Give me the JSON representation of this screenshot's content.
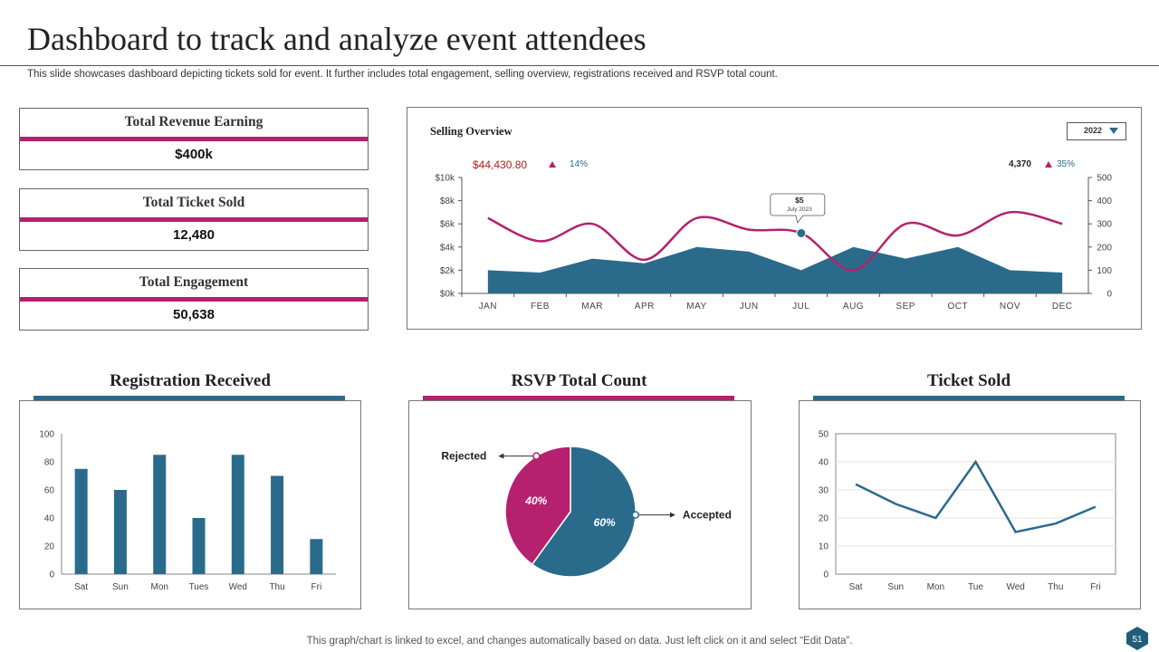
{
  "title": "Dashboard to track and analyze event attendees",
  "subtitle": "This slide showcases dashboard depicting tickets sold for event. It further includes total engagement, selling overview, registrations received and RSVP total count.",
  "kpis": [
    {
      "label": "Total Revenue Earning",
      "value": "$400k"
    },
    {
      "label": "Total Ticket Sold",
      "value": "12,480"
    },
    {
      "label": "Total Engagement",
      "value": "50,638"
    }
  ],
  "sections": {
    "registration": "Registration Received",
    "rsvp": "RSVP Total Count",
    "ticket": "Ticket Sold"
  },
  "selling": {
    "title": "Selling Overview",
    "year": "2022",
    "revenue_stat": "$44,430.80",
    "revenue_change": "14%",
    "tickets_stat": "4,370",
    "tickets_change": "35%",
    "tooltip_value": "$5",
    "tooltip_label": "July 2023"
  },
  "footer": "This graph/chart is linked to excel,  and changes automatically based on data. Just left click on it and select “Edit Data”.",
  "page_number": "51",
  "colors": {
    "teal": "#2a6b8c",
    "magenta": "#b5216f"
  },
  "chart_data": [
    {
      "id": "selling",
      "type": "area",
      "title": "Selling Overview",
      "categories": [
        "JAN",
        "FEB",
        "MAR",
        "APR",
        "MAY",
        "JUN",
        "JUL",
        "AUG",
        "SEP",
        "OCT",
        "NOV",
        "DEC"
      ],
      "series": [
        {
          "name": "Revenue",
          "axis": "left",
          "style": "area",
          "values": [
            2,
            1.8,
            3,
            2.6,
            4,
            3.6,
            2,
            4,
            3,
            4,
            2,
            1.8
          ]
        },
        {
          "name": "Tickets",
          "axis": "right",
          "style": "line",
          "values": [
            325,
            225,
            300,
            145,
            325,
            275,
            260,
            100,
            300,
            250,
            350,
            300
          ]
        }
      ],
      "yticks_left": [
        "$0k",
        "$2k",
        "$4k",
        "$6k",
        "$8k",
        "$10k"
      ],
      "ylim_left": [
        0,
        10
      ],
      "yticks_right": [
        "0",
        "100",
        "200",
        "300",
        "400",
        "500"
      ],
      "ylim_right": [
        0,
        500
      ]
    },
    {
      "id": "registration",
      "type": "bar",
      "title": "Registration Received",
      "categories": [
        "Sat",
        "Sun",
        "Mon",
        "Tues",
        "Wed",
        "Thu",
        "Fri"
      ],
      "values": [
        75,
        60,
        85,
        40,
        85,
        70,
        25
      ],
      "ylim": [
        0,
        100
      ],
      "yticks": [
        "0",
        "20",
        "40",
        "60",
        "80",
        "100"
      ]
    },
    {
      "id": "rsvp",
      "type": "pie",
      "title": "RSVP Total Count",
      "labels": [
        "Accepted",
        "Rejected"
      ],
      "values": [
        60,
        40
      ],
      "value_labels": [
        "60%",
        "40%"
      ]
    },
    {
      "id": "ticket",
      "type": "line",
      "title": "Ticket Sold",
      "categories": [
        "Sat",
        "Sun",
        "Mon",
        "Tue",
        "Wed",
        "Thu",
        "Fri"
      ],
      "values": [
        32,
        25,
        20,
        40,
        15,
        18,
        24
      ],
      "ylim": [
        0,
        50
      ],
      "yticks": [
        "0",
        "10",
        "20",
        "30",
        "40",
        "50"
      ]
    }
  ]
}
